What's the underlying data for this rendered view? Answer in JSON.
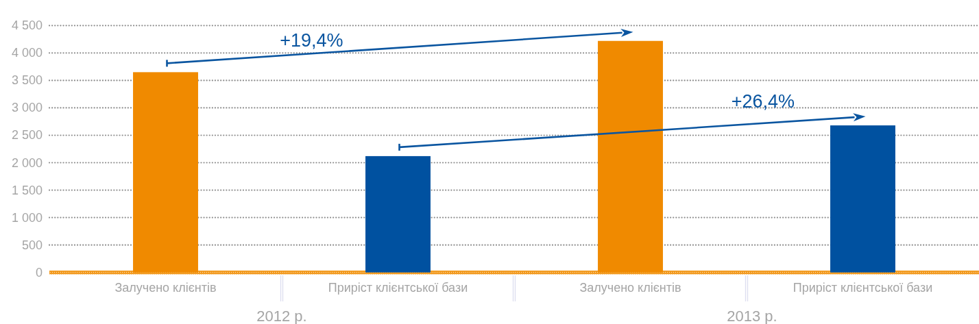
{
  "chart_data": {
    "type": "bar",
    "categories": [
      "2012 р.",
      "2013 р."
    ],
    "series": [
      {
        "name": "Залучено клієнтів",
        "color": "#f08a00",
        "values": [
          3650,
          4220
        ]
      },
      {
        "name": "Приріст клієнтської бази",
        "color": "#0051a0",
        "values": [
          2120,
          2680
        ]
      }
    ],
    "ylim": [
      0,
      4500
    ],
    "yticks": [
      0,
      500,
      {
        "value": 1000,
        "label": "1 000"
      },
      {
        "value": 1500,
        "label": "1 500"
      },
      {
        "value": 2000,
        "label": "2 000"
      },
      {
        "value": 2500,
        "label": "2 500"
      },
      {
        "value": 3000,
        "label": "3 000"
      },
      {
        "value": 3500,
        "label": "3 500"
      },
      {
        "value": 4000,
        "label": "4 000"
      },
      {
        "value": 4500,
        "label": "4 500"
      }
    ],
    "grid": "y",
    "annotations": [
      "+19,4%",
      "+26,4%"
    ]
  }
}
